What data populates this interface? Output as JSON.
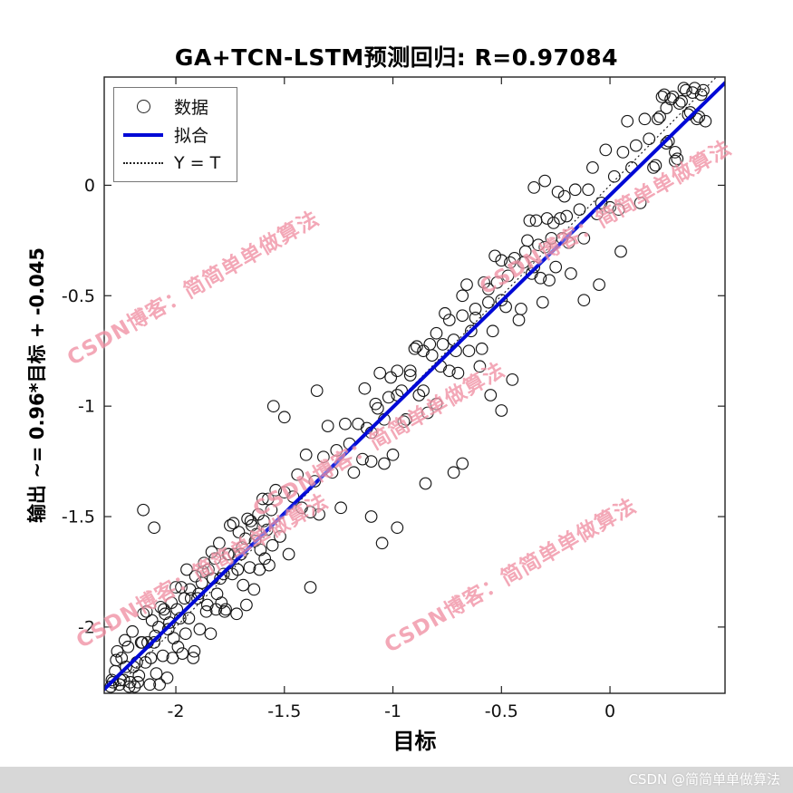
{
  "title": "GA+TCN-LSTM预测回归: R=0.97084",
  "watermark": {
    "text": "CSDN博客：简简单单做算法"
  },
  "footer": {
    "text": "CSDN @简简单单做算法"
  },
  "chart_data": {
    "type": "scatter",
    "title": "GA+TCN-LSTM预测回归: R=0.97084",
    "xlabel": "目标",
    "ylabel": "输出 ~= 0.96*目标 + -0.045",
    "r_value": 0.97084,
    "xlim": [
      -2.33,
      0.53
    ],
    "ylim": [
      -2.3,
      0.49
    ],
    "xticks": [
      -2,
      -1.5,
      -1,
      -0.5,
      0
    ],
    "yticks": [
      0,
      -0.5,
      -1,
      -1.5,
      -2
    ],
    "grid": false,
    "legend_position": "top-left",
    "legend": [
      {
        "marker": "circle",
        "label": "数据"
      },
      {
        "marker": "line",
        "label": "拟合"
      },
      {
        "marker": "dotted",
        "label": "Y = T"
      }
    ],
    "fit_line": {
      "slope": 0.96,
      "intercept": -0.045,
      "color": "#0009d6",
      "label": "拟合"
    },
    "identity_line": {
      "label": "Y = T",
      "style": "dotted",
      "color": "#222222"
    },
    "marker": {
      "shape": "circle",
      "color": "#161616",
      "fill": "none"
    },
    "points": [
      [
        -2.3,
        -2.27
      ],
      [
        -2.29,
        -2.25
      ],
      [
        -2.28,
        -2.2
      ],
      [
        -2.27,
        -2.11
      ],
      [
        -2.26,
        -2.26
      ],
      [
        -2.25,
        -2.14
      ],
      [
        -2.24,
        -2.24
      ],
      [
        -2.23,
        -2.18
      ],
      [
        -2.22,
        -2.09
      ],
      [
        -2.21,
        -2.25
      ],
      [
        -2.2,
        -2.02
      ],
      [
        -2.19,
        -2.27
      ],
      [
        -2.18,
        -2.16
      ],
      [
        -2.17,
        -2.22
      ],
      [
        -2.16,
        -2.07
      ],
      [
        -2.15,
        -1.94
      ],
      [
        -2.14,
        -2.16
      ],
      [
        -2.13,
        -2.07
      ],
      [
        -2.12,
        -2.26
      ],
      [
        -2.11,
        -1.97
      ],
      [
        -2.1,
        -2.07
      ],
      [
        -2.09,
        -2.21
      ],
      [
        -2.08,
        -2.0
      ],
      [
        -2.07,
        -1.91
      ],
      [
        -2.06,
        -2.13
      ],
      [
        -2.05,
        -1.94
      ],
      [
        -2.04,
        -2.23
      ],
      [
        -2.03,
        -1.98
      ],
      [
        -2.02,
        -1.89
      ],
      [
        -2.01,
        -2.05
      ],
      [
        -2.0,
        -1.82
      ],
      [
        -1.99,
        -2.09
      ],
      [
        -1.98,
        -1.96
      ],
      [
        -1.97,
        -2.12
      ],
      [
        -1.96,
        -1.87
      ],
      [
        -1.95,
        -1.74
      ],
      [
        -1.94,
        -1.96
      ],
      [
        -1.93,
        -1.87
      ],
      [
        -1.92,
        -2.14
      ],
      [
        -1.91,
        -1.77
      ],
      [
        -1.9,
        -1.87
      ],
      [
        -1.89,
        -2.01
      ],
      [
        -1.88,
        -1.8
      ],
      [
        -1.87,
        -1.71
      ],
      [
        -1.86,
        -1.93
      ],
      [
        -1.85,
        -1.74
      ],
      [
        -1.84,
        -2.03
      ],
      [
        -1.83,
        -1.78
      ],
      [
        -1.82,
        -1.69
      ],
      [
        -1.81,
        -1.85
      ],
      [
        -1.8,
        -1.62
      ],
      [
        -1.79,
        -1.89
      ],
      [
        -1.78,
        -1.76
      ],
      [
        -1.77,
        -1.92
      ],
      [
        -1.76,
        -1.67
      ],
      [
        -1.75,
        -1.54
      ],
      [
        -1.74,
        -1.76
      ],
      [
        -1.73,
        -1.67
      ],
      [
        -1.72,
        -1.94
      ],
      [
        -1.71,
        -1.57
      ],
      [
        -1.7,
        -1.67
      ],
      [
        -1.69,
        -1.81
      ],
      [
        -1.68,
        -1.6
      ],
      [
        -1.67,
        -1.51
      ],
      [
        -1.66,
        -1.73
      ],
      [
        -1.65,
        -1.54
      ],
      [
        -1.64,
        -1.83
      ],
      [
        -1.63,
        -1.58
      ],
      [
        -1.62,
        -1.49
      ],
      [
        -1.61,
        -1.65
      ],
      [
        -1.6,
        -1.42
      ],
      [
        -1.59,
        -1.69
      ],
      [
        -1.58,
        -1.56
      ],
      [
        -1.57,
        -1.72
      ],
      [
        -1.56,
        -1.47
      ],
      [
        -2.295,
        -2.24
      ],
      [
        -2.275,
        -2.15
      ],
      [
        -2.255,
        -2.24
      ],
      [
        -2.235,
        -2.06
      ],
      [
        -2.215,
        -2.27
      ],
      [
        -2.195,
        -2.18
      ],
      [
        -2.175,
        -2.25
      ],
      [
        -2.155,
        -2.07
      ],
      [
        -2.135,
        -1.93
      ],
      [
        -2.115,
        -2.14
      ],
      [
        -2.095,
        -2.04
      ],
      [
        -2.075,
        -2.26
      ],
      [
        -2.055,
        -1.92
      ],
      [
        -2.035,
        -2.01
      ],
      [
        -2.015,
        -2.14
      ],
      [
        -1.995,
        -1.92
      ],
      [
        -1.975,
        -1.82
      ],
      [
        -1.955,
        -2.03
      ],
      [
        -1.935,
        -1.83
      ],
      [
        -1.915,
        -2.11
      ],
      [
        -1.895,
        -1.85
      ],
      [
        -1.875,
        -1.75
      ],
      [
        -1.855,
        -1.9
      ],
      [
        -1.835,
        -1.66
      ],
      [
        -1.815,
        -1.92
      ],
      [
        -1.795,
        -1.78
      ],
      [
        -1.775,
        -1.93
      ],
      [
        -1.755,
        -1.67
      ],
      [
        -1.735,
        -1.53
      ],
      [
        -1.715,
        -1.74
      ],
      [
        -1.695,
        -1.64
      ],
      [
        -1.675,
        -1.9
      ],
      [
        -1.655,
        -1.52
      ],
      [
        -1.635,
        -1.61
      ],
      [
        -1.615,
        -1.74
      ],
      [
        -1.595,
        -1.52
      ],
      [
        -1.575,
        -1.42
      ],
      [
        -1.555,
        -1.63
      ],
      [
        -1.54,
        -1.38
      ],
      [
        -1.52,
        -1.59
      ],
      [
        -1.5,
        -1.39
      ],
      [
        -1.48,
        -1.67
      ],
      [
        -1.46,
        -1.41
      ],
      [
        -1.44,
        -1.31
      ],
      [
        -1.42,
        -1.46
      ],
      [
        -1.4,
        -1.22
      ],
      [
        -1.38,
        -1.48
      ],
      [
        -1.36,
        -1.34
      ],
      [
        -1.34,
        -1.49
      ],
      [
        -1.32,
        -1.23
      ],
      [
        -1.3,
        -1.09
      ],
      [
        -1.28,
        -1.3
      ],
      [
        -1.26,
        -1.2
      ],
      [
        -1.24,
        -1.46
      ],
      [
        -1.22,
        -1.08
      ],
      [
        -1.2,
        -1.17
      ],
      [
        -1.18,
        -1.3
      ],
      [
        -1.16,
        -1.08
      ],
      [
        -1.14,
        -1.24
      ],
      [
        -1.12,
        -1.1
      ],
      [
        -1.1,
        -1.25
      ],
      [
        -1.08,
        -0.99
      ],
      [
        -1.06,
        -0.85
      ],
      [
        -1.04,
        -1.06
      ],
      [
        -1.02,
        -0.96
      ],
      [
        -1.0,
        -1.22
      ],
      [
        -0.98,
        -0.84
      ],
      [
        -0.96,
        -0.93
      ],
      [
        -0.94,
        -1.06
      ],
      [
        -0.92,
        -0.84
      ],
      [
        -0.9,
        -0.74
      ],
      [
        -0.88,
        -0.95
      ],
      [
        -0.86,
        -0.75
      ],
      [
        -0.84,
        -1.03
      ],
      [
        -0.82,
        -0.77
      ],
      [
        -0.8,
        -0.67
      ],
      [
        -0.78,
        -0.82
      ],
      [
        -0.76,
        -0.58
      ],
      [
        -0.74,
        -0.84
      ],
      [
        -0.72,
        -0.7
      ],
      [
        -0.7,
        -0.85
      ],
      [
        -0.68,
        -0.59
      ],
      [
        -0.66,
        -0.45
      ],
      [
        -0.64,
        -0.66
      ],
      [
        -0.62,
        -0.56
      ],
      [
        -0.6,
        -0.82
      ],
      [
        -0.58,
        -0.44
      ],
      [
        -0.56,
        -0.53
      ],
      [
        -0.54,
        -0.66
      ],
      [
        -0.52,
        -0.44
      ],
      [
        -0.5,
        -0.34
      ],
      [
        -0.48,
        -0.55
      ],
      [
        -0.46,
        -0.35
      ],
      [
        -1.13,
        -0.92
      ],
      [
        -1.1,
        -1.12
      ],
      [
        -1.07,
        -1.01
      ],
      [
        -1.04,
        -1.26
      ],
      [
        -1.01,
        -0.87
      ],
      [
        -0.98,
        -0.95
      ],
      [
        -0.95,
        -1.07
      ],
      [
        -0.92,
        -0.86
      ],
      [
        -0.89,
        -0.73
      ],
      [
        -0.86,
        -0.93
      ],
      [
        -0.83,
        -0.72
      ],
      [
        -0.8,
        -0.99
      ],
      [
        -0.77,
        -0.72
      ],
      [
        -0.74,
        -0.61
      ],
      [
        -0.71,
        -0.75
      ],
      [
        -0.68,
        -0.5
      ],
      [
        -0.65,
        -0.75
      ],
      [
        -0.62,
        -0.6
      ],
      [
        -0.59,
        -0.74
      ],
      [
        -0.56,
        -0.47
      ],
      [
        -0.53,
        -0.32
      ],
      [
        -0.5,
        -0.52
      ],
      [
        -0.47,
        -0.41
      ],
      [
        -0.44,
        -0.33
      ],
      [
        -0.42,
        -0.61
      ],
      [
        -0.4,
        -0.35
      ],
      [
        -0.38,
        -0.25
      ],
      [
        -0.36,
        -0.4
      ],
      [
        -0.34,
        -0.16
      ],
      [
        -0.32,
        -0.42
      ],
      [
        -0.3,
        -0.28
      ],
      [
        -0.28,
        -0.43
      ],
      [
        -0.26,
        -0.17
      ],
      [
        -0.24,
        -0.03
      ],
      [
        -0.22,
        -0.24
      ],
      [
        -0.2,
        -0.14
      ],
      [
        -0.18,
        -0.4
      ],
      [
        -0.16,
        -0.02
      ],
      [
        -0.14,
        -0.11
      ],
      [
        -0.12,
        -0.24
      ],
      [
        -0.1,
        -0.02
      ],
      [
        -0.08,
        0.08
      ],
      [
        -0.06,
        -0.13
      ],
      [
        -0.41,
        -0.56
      ],
      [
        -0.39,
        -0.3
      ],
      [
        -0.37,
        -0.16
      ],
      [
        -0.35,
        -0.37
      ],
      [
        -0.33,
        -0.27
      ],
      [
        -0.31,
        -0.53
      ],
      [
        -0.29,
        -0.15
      ],
      [
        -0.27,
        -0.24
      ],
      [
        -0.25,
        -0.37
      ],
      [
        -0.23,
        -0.15
      ],
      [
        -0.21,
        -0.05
      ],
      [
        -0.19,
        -0.26
      ],
      [
        -0.04,
        -0.08
      ],
      [
        -0.02,
        0.16
      ],
      [
        0.0,
        -0.1
      ],
      [
        0.02,
        0.04
      ],
      [
        0.04,
        -0.11
      ],
      [
        0.06,
        0.15
      ],
      [
        0.08,
        0.29
      ],
      [
        0.1,
        0.08
      ],
      [
        0.12,
        0.18
      ],
      [
        0.14,
        -0.08
      ],
      [
        0.16,
        0.3
      ],
      [
        0.18,
        0.21
      ],
      [
        0.2,
        0.08
      ],
      [
        0.22,
        0.3
      ],
      [
        0.24,
        0.4
      ],
      [
        0.26,
        0.19
      ],
      [
        0.28,
        0.39
      ],
      [
        0.3,
        0.11
      ],
      [
        0.32,
        0.37
      ],
      [
        0.34,
        0.44
      ],
      [
        0.36,
        0.32
      ],
      [
        0.38,
        0.42
      ],
      [
        0.4,
        0.3
      ],
      [
        0.42,
        0.41
      ],
      [
        0.44,
        0.29
      ],
      [
        0.21,
        0.09
      ],
      [
        0.23,
        0.31
      ],
      [
        0.25,
        0.41
      ],
      [
        0.27,
        0.2
      ],
      [
        0.29,
        0.4
      ],
      [
        0.31,
        0.12
      ],
      [
        0.33,
        0.38
      ],
      [
        0.35,
        0.43
      ],
      [
        0.37,
        0.33
      ],
      [
        0.39,
        0.44
      ],
      [
        0.41,
        0.31
      ],
      [
        0.43,
        0.43
      ],
      [
        0.3,
        0.15
      ],
      [
        0.26,
        0.35
      ],
      [
        -1.05,
        -1.62
      ],
      [
        -0.98,
        -1.55
      ],
      [
        -1.1,
        -1.5
      ],
      [
        -0.55,
        -0.95
      ],
      [
        -0.5,
        -1.02
      ],
      [
        -0.45,
        -0.88
      ],
      [
        -1.5,
        -1.05
      ],
      [
        -1.55,
        -1.0
      ],
      [
        -2.1,
        -1.55
      ],
      [
        -2.15,
        -1.47
      ],
      [
        -0.3,
        0.02
      ],
      [
        -0.35,
        -0.01
      ],
      [
        -1.35,
        -0.93
      ],
      [
        -0.72,
        -1.3
      ],
      [
        -0.68,
        -1.26
      ],
      [
        -1.38,
        -1.82
      ],
      [
        -0.85,
        -1.35
      ],
      [
        -0.12,
        -0.52
      ],
      [
        -0.05,
        -0.45
      ],
      [
        0.05,
        -0.3
      ]
    ]
  }
}
